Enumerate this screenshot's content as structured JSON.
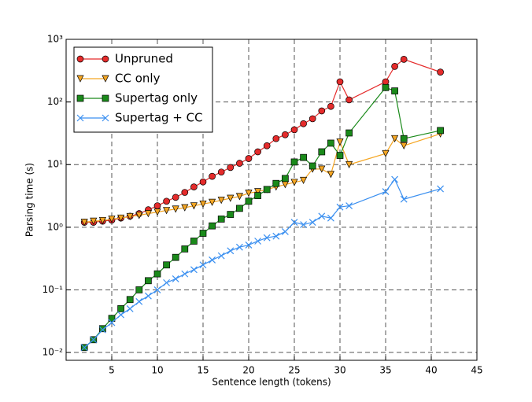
{
  "chart_data": {
    "type": "line",
    "xlabel": "Sentence length (tokens)",
    "ylabel": "Parsing time (s)",
    "x": [
      2,
      3,
      4,
      5,
      6,
      7,
      8,
      9,
      10,
      11,
      12,
      13,
      14,
      15,
      16,
      17,
      18,
      19,
      20,
      21,
      22,
      23,
      24,
      25,
      26,
      27,
      28,
      29,
      30,
      31,
      35,
      36,
      37,
      41
    ],
    "series": [
      {
        "name": "Unpruned",
        "color": "#e52b2b",
        "marker": "circle",
        "values": [
          1.2,
          1.2,
          1.25,
          1.3,
          1.4,
          1.5,
          1.65,
          1.9,
          2.2,
          2.6,
          3.0,
          3.6,
          4.4,
          5.3,
          6.5,
          7.6,
          9,
          10.5,
          12.5,
          16,
          20,
          26,
          30,
          36,
          45,
          54,
          72,
          85,
          210,
          108,
          210,
          370,
          480,
          300
        ]
      },
      {
        "name": "CC only",
        "color": "#f5a623",
        "marker": "triangle",
        "values": [
          1.2,
          1.25,
          1.28,
          1.35,
          1.4,
          1.48,
          1.55,
          1.65,
          1.75,
          1.85,
          1.95,
          2.05,
          2.2,
          2.35,
          2.5,
          2.7,
          2.9,
          3.1,
          3.5,
          3.7,
          4.0,
          4.4,
          4.8,
          5.2,
          5.6,
          8.5,
          8.5,
          7,
          23,
          10,
          15,
          26,
          20,
          31
        ]
      },
      {
        "name": "Supertag only",
        "color": "#1a8a1a",
        "marker": "square",
        "values": [
          0.012,
          0.016,
          0.024,
          0.035,
          0.05,
          0.07,
          0.1,
          0.14,
          0.18,
          0.25,
          0.33,
          0.45,
          0.6,
          0.8,
          1.05,
          1.35,
          1.6,
          2.0,
          2.6,
          3.2,
          4,
          5,
          6,
          11,
          13,
          9.5,
          16,
          22,
          14,
          32,
          170,
          150,
          26,
          35
        ]
      },
      {
        "name": "Supertag + CC",
        "color": "#3a8ff0",
        "marker": "x",
        "values": [
          0.012,
          0.016,
          0.023,
          0.03,
          0.04,
          0.05,
          0.065,
          0.08,
          0.1,
          0.13,
          0.15,
          0.18,
          0.21,
          0.25,
          0.3,
          0.35,
          0.42,
          0.48,
          0.52,
          0.6,
          0.68,
          0.72,
          0.85,
          1.2,
          1.1,
          1.2,
          1.5,
          1.4,
          2.1,
          2.2,
          3.7,
          5.8,
          2.8,
          4.1
        ]
      }
    ],
    "xlim": [
      0,
      45
    ],
    "xticks": [
      5,
      10,
      15,
      20,
      25,
      30,
      35,
      40,
      45
    ],
    "ylim": [
      0.0075,
      1000
    ],
    "yscale": "log",
    "yticks": [
      {
        "value": 0.01,
        "label": "10⁻²"
      },
      {
        "value": 0.1,
        "label": "10⁻¹"
      },
      {
        "value": 1,
        "label": "10⁰"
      },
      {
        "value": 10,
        "label": "10¹"
      },
      {
        "value": 100,
        "label": "10²"
      },
      {
        "value": 1000,
        "label": "10³"
      }
    ],
    "grid": true,
    "legend": "upper left"
  }
}
